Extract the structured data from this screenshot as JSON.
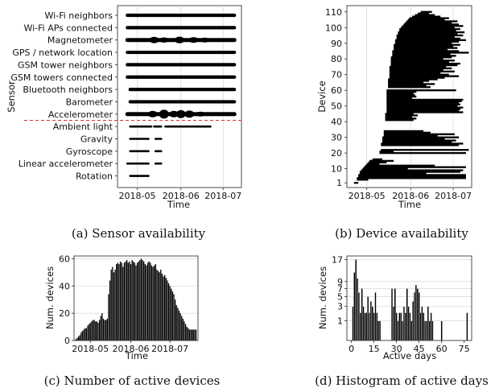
{
  "chart_data": [
    {
      "type": "scatter",
      "caption": "(a) Sensor availability",
      "xlabel": "Time",
      "ylabel": "Sensor",
      "xticks": [
        "2018-05",
        "2018-06",
        "2018-07"
      ],
      "xlim": [
        "2018-04-17",
        "2018-07-14"
      ],
      "grid": "vertical",
      "divider": {
        "between": [
          "Accelerometer",
          "Ambient light"
        ],
        "color": "#e03030",
        "style": "dashed"
      },
      "sensors": [
        {
          "name": "Wi-Fi neighbors",
          "ranges": [
            [
              "2018-04-24",
              "2018-07-09"
            ]
          ],
          "thickness": "normal"
        },
        {
          "name": "Wi-Fi APs connected",
          "ranges": [
            [
              "2018-04-24",
              "2018-07-09"
            ]
          ],
          "thickness": "normal"
        },
        {
          "name": "Magnetometer",
          "ranges": [
            [
              "2018-04-24",
              "2018-07-09"
            ]
          ],
          "thickness": "thick"
        },
        {
          "name": "GPS / network location",
          "ranges": [
            [
              "2018-04-24",
              "2018-07-09"
            ]
          ],
          "thickness": "normal"
        },
        {
          "name": "GSM tower neighbors",
          "ranges": [
            [
              "2018-04-24",
              "2018-07-09"
            ]
          ],
          "thickness": "normal"
        },
        {
          "name": "GSM towers connected",
          "ranges": [
            [
              "2018-04-24",
              "2018-07-09"
            ]
          ],
          "thickness": "normal"
        },
        {
          "name": "Bluetooth neighbors",
          "ranges": [
            [
              "2018-04-26",
              "2018-07-09"
            ]
          ],
          "thickness": "normal"
        },
        {
          "name": "Barometer",
          "ranges": [
            [
              "2018-04-26",
              "2018-07-09"
            ]
          ],
          "thickness": "normal"
        },
        {
          "name": "Accelerometer",
          "ranges": [
            [
              "2018-04-24",
              "2018-07-09"
            ]
          ],
          "thickness": "thickest"
        },
        {
          "name": "Ambient light",
          "ranges": [
            [
              "2018-04-26",
              "2018-05-11"
            ],
            [
              "2018-05-13",
              "2018-05-18"
            ],
            [
              "2018-05-21",
              "2018-06-22"
            ]
          ],
          "thickness": "thin"
        },
        {
          "name": "Gravity",
          "ranges": [
            [
              "2018-04-26",
              "2018-05-09"
            ],
            [
              "2018-05-14",
              "2018-05-18"
            ]
          ],
          "thickness": "thin"
        },
        {
          "name": "Gyroscope",
          "ranges": [
            [
              "2018-04-26",
              "2018-05-09"
            ],
            [
              "2018-05-14",
              "2018-05-18"
            ]
          ],
          "thickness": "thin"
        },
        {
          "name": "Linear accelerometer",
          "ranges": [
            [
              "2018-04-24",
              "2018-05-09"
            ],
            [
              "2018-05-14",
              "2018-05-18"
            ]
          ],
          "thickness": "thin"
        },
        {
          "name": "Rotation",
          "ranges": [
            [
              "2018-04-26",
              "2018-05-09"
            ]
          ],
          "thickness": "thin"
        }
      ]
    },
    {
      "type": "scatter",
      "caption": "(b) Device availability",
      "xlabel": "Time",
      "ylabel": "Device",
      "xticks": [
        "2018-05",
        "2018-06",
        "2018-07"
      ],
      "xlim": [
        "2018-04-17",
        "2018-07-14"
      ],
      "yticks": [
        1,
        10,
        20,
        30,
        40,
        50,
        60,
        70,
        80,
        90,
        100,
        110
      ],
      "ylim": [
        -2,
        114
      ],
      "grid": "vertical",
      "devices": [
        [
          1,
          "2018-04-22",
          "2018-04-25"
        ],
        [
          3,
          "2018-04-24",
          "2018-05-02"
        ],
        [
          4,
          "2018-04-24",
          "2018-07-10"
        ],
        [
          5,
          "2018-04-25",
          "2018-07-10"
        ],
        [
          6,
          "2018-04-25",
          "2018-07-10"
        ],
        [
          7,
          "2018-04-26",
          "2018-06-12"
        ],
        [
          8,
          "2018-04-26",
          "2018-07-06"
        ],
        [
          9,
          "2018-04-27",
          "2018-07-08"
        ],
        [
          10,
          "2018-04-28",
          "2018-05-30"
        ],
        [
          11,
          "2018-04-29",
          "2018-07-10"
        ],
        [
          12,
          "2018-04-30",
          "2018-06-18"
        ],
        [
          13,
          "2018-05-01",
          "2018-05-10"
        ],
        [
          14,
          "2018-05-02",
          "2018-05-15"
        ],
        [
          15,
          "2018-05-03",
          "2018-05-20"
        ],
        [
          16,
          "2018-05-05",
          "2018-05-12"
        ],
        [
          20,
          "2018-05-10",
          "2018-07-10"
        ],
        [
          21,
          "2018-05-10",
          "2018-05-20"
        ],
        [
          22,
          "2018-05-11",
          "2018-07-12"
        ],
        [
          25,
          "2018-05-11",
          "2018-07-05"
        ],
        [
          26,
          "2018-05-11",
          "2018-07-08"
        ],
        [
          27,
          "2018-05-12",
          "2018-06-30"
        ],
        [
          28,
          "2018-05-12",
          "2018-07-03"
        ],
        [
          29,
          "2018-05-12",
          "2018-06-25"
        ],
        [
          30,
          "2018-05-12",
          "2018-07-05"
        ],
        [
          31,
          "2018-05-13",
          "2018-06-20"
        ],
        [
          32,
          "2018-05-13",
          "2018-07-02"
        ],
        [
          33,
          "2018-05-13",
          "2018-06-15"
        ],
        [
          34,
          "2018-05-13",
          "2018-06-10"
        ],
        [
          41,
          "2018-05-14",
          "2018-06-03"
        ],
        [
          42,
          "2018-05-14",
          "2018-06-05"
        ],
        [
          43,
          "2018-05-14",
          "2018-06-02"
        ],
        [
          44,
          "2018-05-14",
          "2018-06-06"
        ],
        [
          45,
          "2018-05-14",
          "2018-06-03"
        ],
        [
          46,
          "2018-05-15",
          "2018-07-08"
        ],
        [
          47,
          "2018-05-15",
          "2018-07-05"
        ],
        [
          48,
          "2018-05-15",
          "2018-07-06"
        ],
        [
          49,
          "2018-05-15",
          "2018-07-08"
        ],
        [
          50,
          "2018-05-15",
          "2018-07-04"
        ],
        [
          51,
          "2018-05-15",
          "2018-07-06"
        ],
        [
          52,
          "2018-05-15",
          "2018-07-05"
        ],
        [
          53,
          "2018-05-15",
          "2018-07-07"
        ],
        [
          54,
          "2018-05-15",
          "2018-07-08"
        ],
        [
          55,
          "2018-05-15",
          "2018-06-02"
        ],
        [
          56,
          "2018-05-15",
          "2018-06-05"
        ],
        [
          57,
          "2018-05-15",
          "2018-06-04"
        ],
        [
          58,
          "2018-05-15",
          "2018-06-03"
        ],
        [
          59,
          "2018-05-15",
          "2018-06-05"
        ],
        [
          60,
          "2018-05-15",
          "2018-07-03"
        ],
        [
          62,
          "2018-05-16",
          "2018-06-15"
        ],
        [
          63,
          "2018-05-16",
          "2018-06-12"
        ],
        [
          64,
          "2018-05-16",
          "2018-06-18"
        ],
        [
          65,
          "2018-05-16",
          "2018-06-10"
        ],
        [
          66,
          "2018-05-16",
          "2018-06-14"
        ],
        [
          67,
          "2018-05-16",
          "2018-06-20"
        ],
        [
          68,
          "2018-05-17",
          "2018-06-25"
        ],
        [
          69,
          "2018-05-17",
          "2018-07-05"
        ],
        [
          70,
          "2018-05-17",
          "2018-06-28"
        ],
        [
          71,
          "2018-05-17",
          "2018-06-22"
        ],
        [
          72,
          "2018-05-17",
          "2018-07-02"
        ],
        [
          73,
          "2018-05-17",
          "2018-06-24"
        ],
        [
          74,
          "2018-05-17",
          "2018-06-30"
        ],
        [
          75,
          "2018-05-17",
          "2018-06-26"
        ],
        [
          76,
          "2018-05-18",
          "2018-07-04"
        ],
        [
          77,
          "2018-05-18",
          "2018-07-06"
        ],
        [
          78,
          "2018-05-18",
          "2018-06-28"
        ],
        [
          79,
          "2018-05-18",
          "2018-07-02"
        ],
        [
          80,
          "2018-05-18",
          "2018-06-24"
        ],
        [
          81,
          "2018-05-18",
          "2018-06-30"
        ],
        [
          82,
          "2018-05-19",
          "2018-07-03"
        ],
        [
          83,
          "2018-05-19",
          "2018-06-29"
        ],
        [
          84,
          "2018-05-19",
          "2018-07-12"
        ],
        [
          85,
          "2018-05-19",
          "2018-07-05"
        ],
        [
          86,
          "2018-05-20",
          "2018-06-27"
        ],
        [
          87,
          "2018-05-20",
          "2018-07-04"
        ],
        [
          88,
          "2018-05-20",
          "2018-07-01"
        ],
        [
          89,
          "2018-05-20",
          "2018-07-06"
        ],
        [
          90,
          "2018-05-21",
          "2018-06-30"
        ],
        [
          91,
          "2018-05-21",
          "2018-07-05"
        ],
        [
          92,
          "2018-05-21",
          "2018-07-10"
        ],
        [
          93,
          "2018-05-22",
          "2018-07-06"
        ],
        [
          94,
          "2018-05-22",
          "2018-07-02"
        ],
        [
          95,
          "2018-05-22",
          "2018-07-08"
        ],
        [
          96,
          "2018-05-23",
          "2018-07-04"
        ],
        [
          97,
          "2018-05-23",
          "2018-07-09"
        ],
        [
          98,
          "2018-05-24",
          "2018-07-03"
        ],
        [
          99,
          "2018-05-24",
          "2018-07-06"
        ],
        [
          100,
          "2018-05-25",
          "2018-07-02"
        ],
        [
          101,
          "2018-05-26",
          "2018-07-08"
        ],
        [
          102,
          "2018-05-27",
          "2018-07-05"
        ],
        [
          103,
          "2018-05-28",
          "2018-06-30"
        ],
        [
          104,
          "2018-05-29",
          "2018-07-04"
        ],
        [
          105,
          "2018-05-30",
          "2018-06-25"
        ],
        [
          106,
          "2018-05-31",
          "2018-06-28"
        ],
        [
          107,
          "2018-06-02",
          "2018-06-22"
        ],
        [
          108,
          "2018-06-04",
          "2018-06-18"
        ],
        [
          109,
          "2018-06-06",
          "2018-06-14"
        ],
        [
          110,
          "2018-06-08",
          "2018-06-16"
        ]
      ]
    },
    {
      "type": "bar",
      "caption": "(c) Number of active devices",
      "xlabel": "Time",
      "ylabel": "Num. devices",
      "xticks": [
        "2018-05",
        "2018-06",
        "2018-07"
      ],
      "yticks": [
        0,
        20,
        40,
        60
      ],
      "ylim": [
        0,
        62
      ],
      "grid": "horizontal",
      "start_date": "2018-04-20",
      "values": [
        1,
        2,
        3,
        4,
        6,
        7,
        8,
        9,
        9,
        11,
        12,
        13,
        14,
        15,
        15,
        14,
        14,
        13,
        15,
        18,
        20,
        16,
        15,
        15,
        16,
        34,
        44,
        52,
        54,
        50,
        52,
        56,
        57,
        56,
        58,
        57,
        54,
        57,
        58,
        59,
        57,
        58,
        56,
        59,
        58,
        57,
        55,
        57,
        58,
        59,
        60,
        59,
        58,
        56,
        55,
        57,
        58,
        57,
        55,
        54,
        55,
        56,
        52,
        51,
        50,
        52,
        49,
        47,
        48,
        46,
        44,
        42,
        40,
        38,
        36,
        34,
        30,
        26,
        24,
        22,
        20,
        18,
        16,
        14,
        12,
        10,
        9,
        8,
        8,
        8,
        8,
        8,
        8
      ]
    },
    {
      "type": "bar",
      "caption": "(d) Histogram of active days",
      "xlabel": "Active days",
      "ylabel": "Num. devices",
      "xticks": [
        0,
        15,
        30,
        45,
        60,
        75
      ],
      "yticks": [
        1,
        3,
        5,
        7,
        9,
        17
      ],
      "y_scale": "sqrt",
      "ylim": [
        0,
        18.5
      ],
      "grid": "horizontal",
      "bin_width": 1,
      "x": [
        1,
        2,
        3,
        4,
        5,
        6,
        7,
        8,
        9,
        10,
        11,
        12,
        13,
        14,
        15,
        16,
        17,
        18,
        19,
        20,
        21,
        22,
        23,
        24,
        25,
        26,
        27,
        28,
        29,
        30,
        31,
        32,
        33,
        34,
        35,
        36,
        37,
        38,
        39,
        40,
        41,
        42,
        43,
        44,
        45,
        46,
        47,
        48,
        49,
        50,
        51,
        52,
        53,
        54,
        55,
        56,
        57,
        58,
        59,
        60,
        61,
        62,
        63,
        64,
        65,
        66,
        67,
        68,
        69,
        70,
        71,
        72,
        73,
        74,
        75,
        76,
        77,
        78
      ],
      "values": [
        3,
        12,
        17,
        10,
        6,
        2,
        7,
        3,
        2,
        2,
        5,
        2,
        4,
        3,
        2,
        6,
        2,
        1,
        1,
        0,
        0,
        0,
        0,
        0,
        0,
        0,
        7,
        3,
        7,
        2,
        1,
        2,
        2,
        1,
        3,
        2,
        7,
        3,
        2,
        1,
        4,
        6,
        8,
        7,
        6,
        2,
        3,
        2,
        1,
        1,
        3,
        1,
        2,
        1,
        0,
        0,
        0,
        0,
        0,
        1,
        0,
        0,
        0,
        0,
        0,
        0,
        0,
        0,
        0,
        0,
        0,
        0,
        0,
        0,
        0,
        0,
        2,
        0
      ]
    }
  ]
}
